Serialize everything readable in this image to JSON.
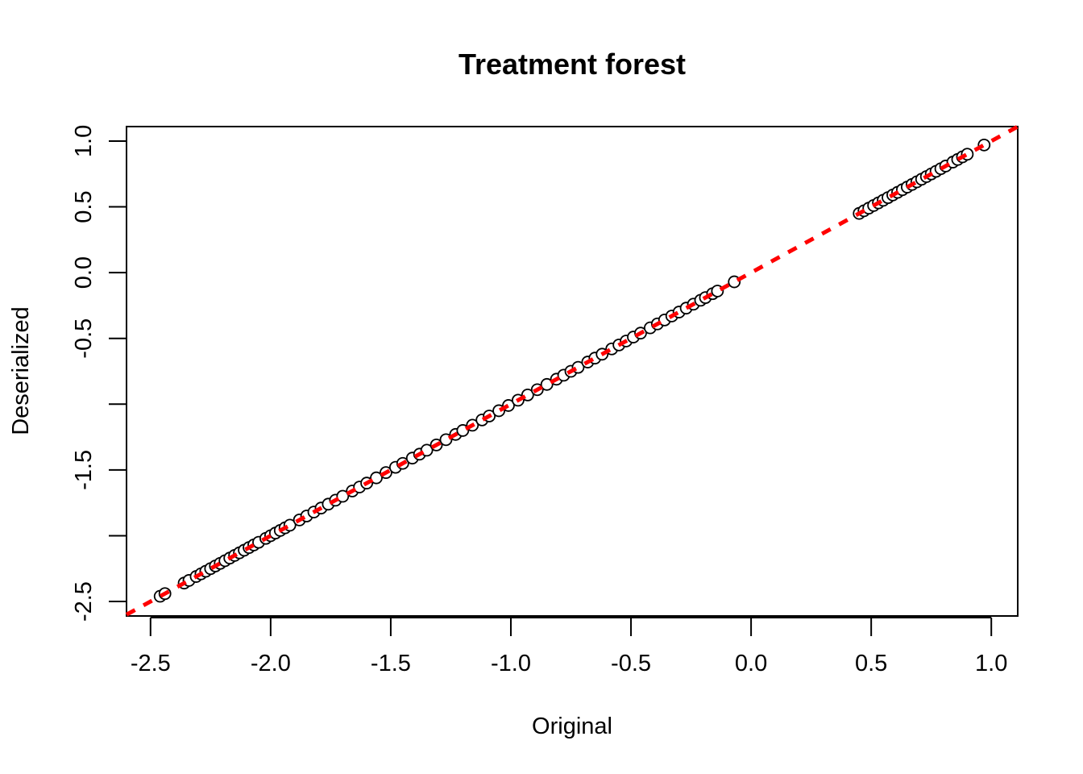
{
  "chart_data": {
    "type": "scatter",
    "title": "Treatment forest",
    "xlabel": "Original",
    "ylabel": "Deserialized",
    "xlim": [
      -2.6,
      1.11
    ],
    "ylim": [
      -2.61,
      1.11
    ],
    "x_ticks": [
      -2.5,
      -2.0,
      -1.5,
      -1.0,
      -0.5,
      0.0,
      0.5,
      1.0
    ],
    "x_tick_labels": [
      "-2.5",
      "-2.0",
      "-1.5",
      "-1.0",
      "-0.5",
      "0.0",
      "0.5",
      "1.0"
    ],
    "y_ticks": [
      -2.5,
      -2.0,
      -1.5,
      -1.0,
      -0.5,
      0.0,
      0.5,
      1.0
    ],
    "y_tick_labels": [
      "-2.5",
      "",
      "-1.5",
      "",
      "-0.5",
      "0.0",
      "0.5",
      "1.0"
    ],
    "grid": false,
    "reference_line": {
      "intercept": 0,
      "slope": 1,
      "color": "#ff0000",
      "style": "dashed"
    },
    "series": [
      {
        "marker": "open-circle",
        "x": [
          -2.46,
          -2.44,
          -2.36,
          -2.34,
          -2.31,
          -2.29,
          -2.27,
          -2.25,
          -2.23,
          -2.21,
          -2.19,
          -2.17,
          -2.15,
          -2.13,
          -2.11,
          -2.09,
          -2.07,
          -2.05,
          -2.02,
          -2.0,
          -1.98,
          -1.96,
          -1.94,
          -1.92,
          -1.88,
          -1.85,
          -1.82,
          -1.79,
          -1.76,
          -1.73,
          -1.7,
          -1.66,
          -1.63,
          -1.6,
          -1.56,
          -1.52,
          -1.48,
          -1.45,
          -1.41,
          -1.38,
          -1.35,
          -1.31,
          -1.27,
          -1.23,
          -1.2,
          -1.16,
          -1.12,
          -1.09,
          -1.05,
          -1.01,
          -0.97,
          -0.93,
          -0.89,
          -0.85,
          -0.81,
          -0.78,
          -0.75,
          -0.72,
          -0.68,
          -0.65,
          -0.62,
          -0.58,
          -0.55,
          -0.52,
          -0.49,
          -0.46,
          -0.42,
          -0.39,
          -0.36,
          -0.33,
          -0.3,
          -0.27,
          -0.24,
          -0.21,
          -0.19,
          -0.16,
          -0.14,
          -0.07,
          0.45,
          0.47,
          0.49,
          0.51,
          0.53,
          0.55,
          0.57,
          0.59,
          0.61,
          0.63,
          0.65,
          0.67,
          0.69,
          0.71,
          0.73,
          0.75,
          0.77,
          0.79,
          0.81,
          0.84,
          0.86,
          0.88,
          0.9,
          0.97
        ],
        "y": [
          -2.46,
          -2.44,
          -2.36,
          -2.34,
          -2.31,
          -2.29,
          -2.27,
          -2.25,
          -2.23,
          -2.21,
          -2.19,
          -2.17,
          -2.15,
          -2.13,
          -2.11,
          -2.09,
          -2.07,
          -2.05,
          -2.02,
          -2.0,
          -1.98,
          -1.96,
          -1.94,
          -1.92,
          -1.88,
          -1.85,
          -1.82,
          -1.79,
          -1.76,
          -1.73,
          -1.7,
          -1.66,
          -1.63,
          -1.6,
          -1.56,
          -1.52,
          -1.48,
          -1.45,
          -1.41,
          -1.38,
          -1.35,
          -1.31,
          -1.27,
          -1.23,
          -1.2,
          -1.16,
          -1.12,
          -1.09,
          -1.05,
          -1.01,
          -0.97,
          -0.93,
          -0.89,
          -0.85,
          -0.81,
          -0.78,
          -0.75,
          -0.72,
          -0.68,
          -0.65,
          -0.62,
          -0.58,
          -0.55,
          -0.52,
          -0.49,
          -0.46,
          -0.42,
          -0.39,
          -0.36,
          -0.33,
          -0.3,
          -0.27,
          -0.24,
          -0.21,
          -0.19,
          -0.16,
          -0.14,
          -0.07,
          0.45,
          0.47,
          0.49,
          0.51,
          0.53,
          0.55,
          0.57,
          0.59,
          0.61,
          0.63,
          0.65,
          0.67,
          0.69,
          0.71,
          0.73,
          0.75,
          0.77,
          0.79,
          0.81,
          0.84,
          0.86,
          0.88,
          0.9,
          0.97
        ]
      }
    ]
  }
}
